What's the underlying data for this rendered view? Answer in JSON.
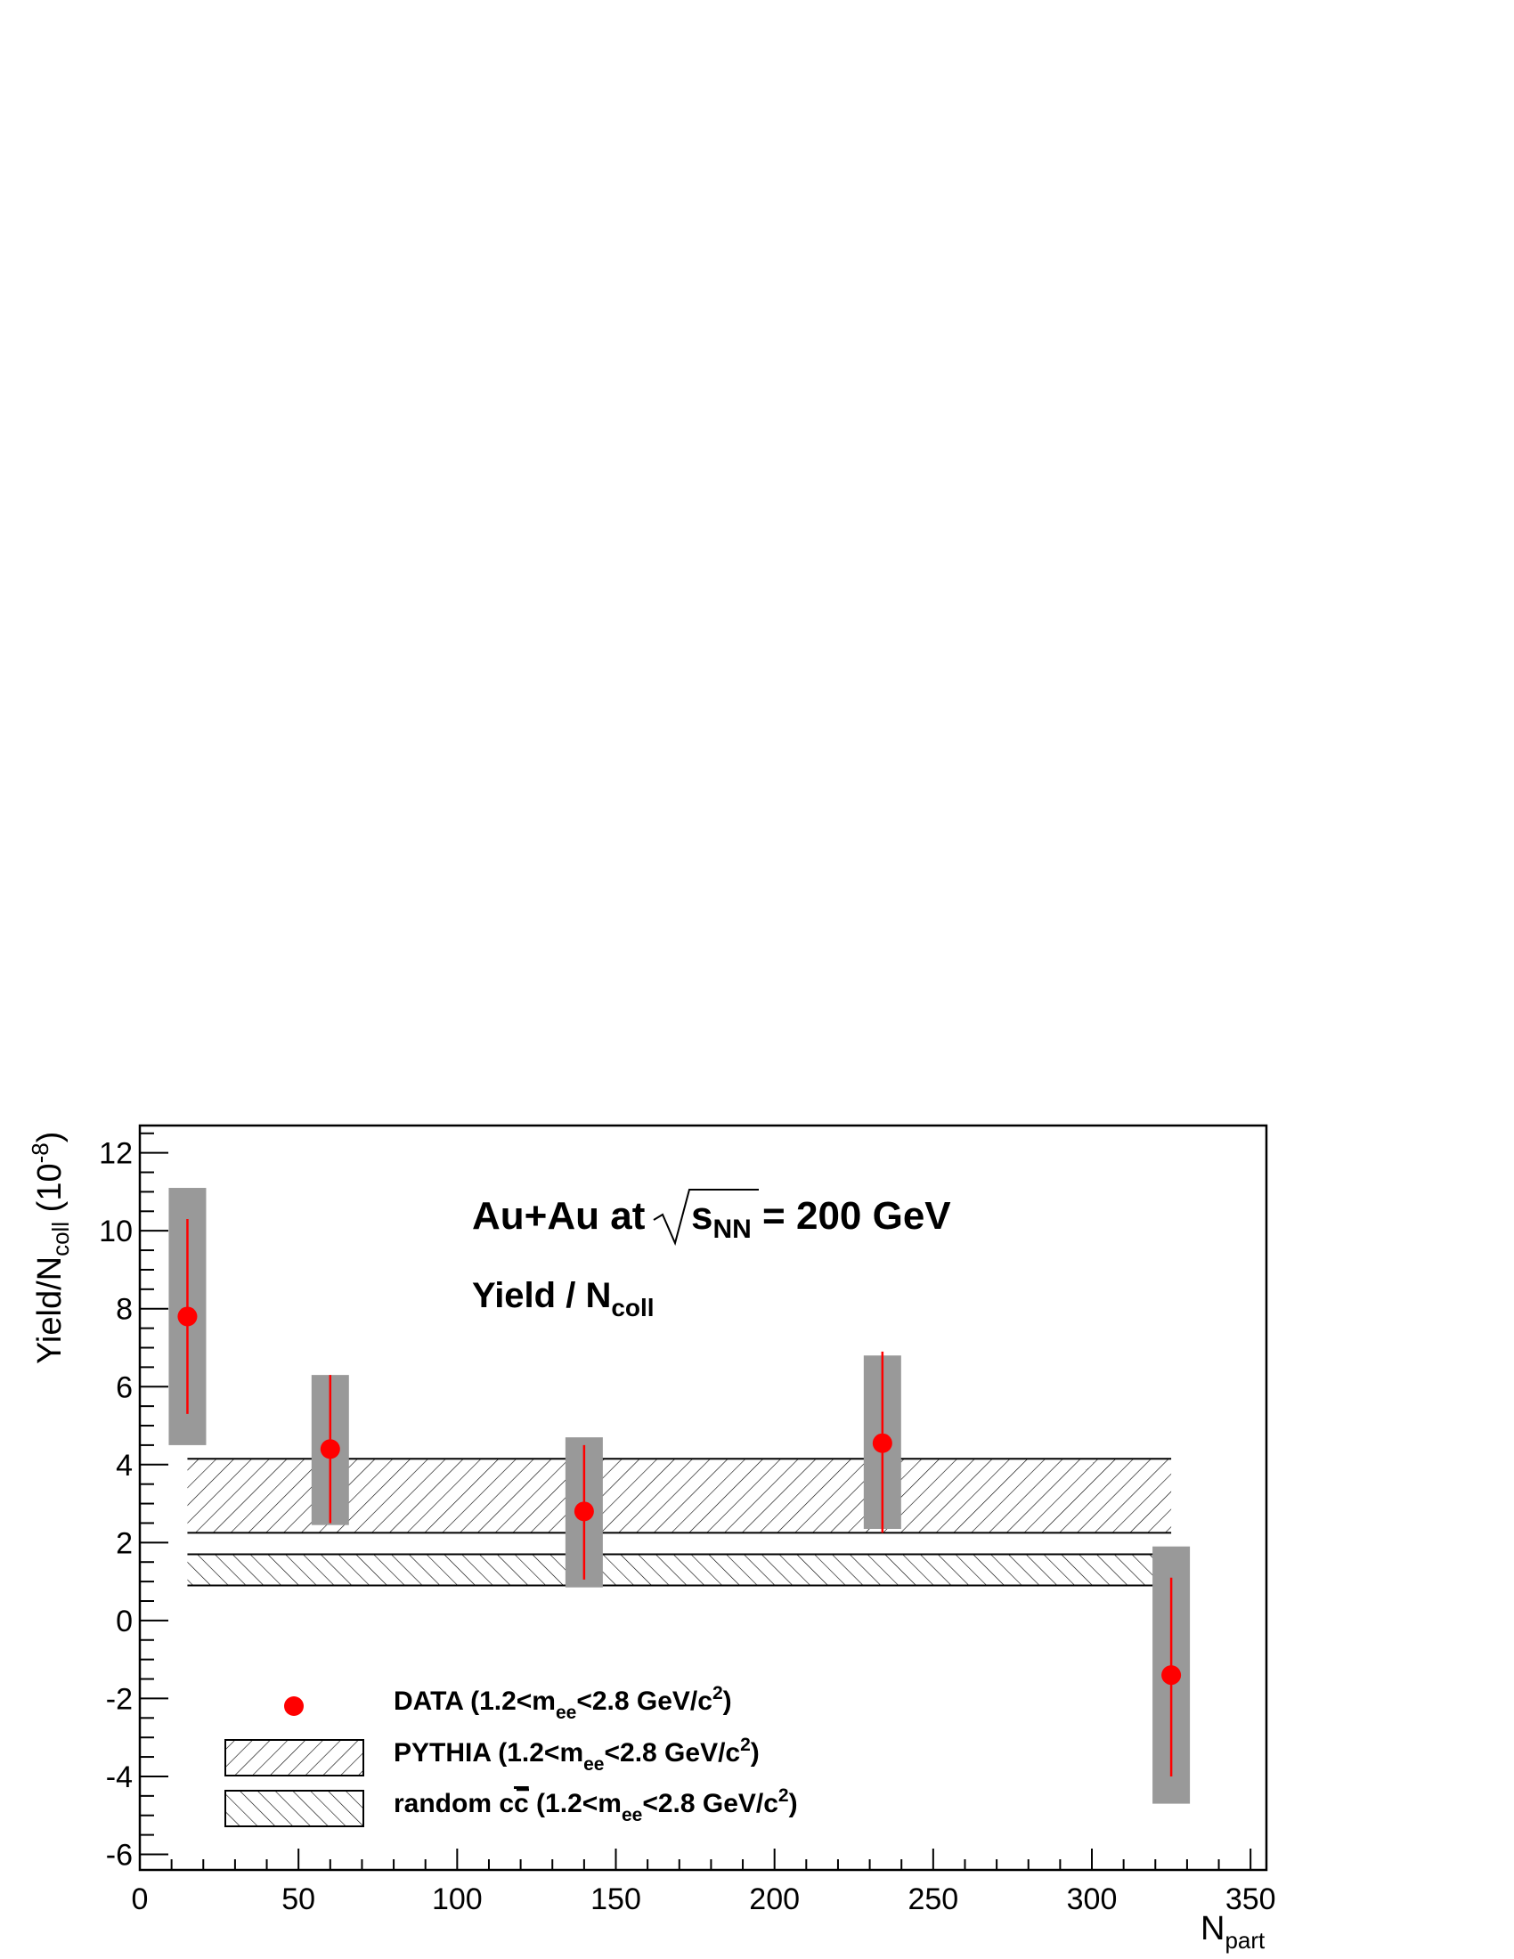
{
  "chart_data": {
    "type": "scatter",
    "x_axis": {
      "title": "N",
      "title_sub": "part",
      "range": [
        0,
        355
      ],
      "ticks": [
        0,
        50,
        100,
        150,
        200,
        250,
        300,
        350
      ],
      "tick_labels": [
        "0",
        "50",
        "100",
        "150",
        "200",
        "250",
        "300",
        "350"
      ]
    },
    "y_axis": {
      "title_main": "Yield/N",
      "title_sub": "coll",
      "title_unit": "(10",
      "title_exp": "-8",
      "title_close": ")",
      "range": [
        -6.4,
        12.7
      ],
      "ticks": [
        -6,
        -4,
        -2,
        0,
        2,
        4,
        6,
        8,
        10,
        12
      ],
      "tick_labels": [
        "-6",
        "-4",
        "-2",
        "0",
        "2",
        "4",
        "6",
        "8",
        "10",
        "12"
      ]
    },
    "annotations": {
      "line1_prefix": "Au+Au at",
      "line1_s": "s",
      "line1_s_sub": "NN",
      "line1_suffix": " = 200 GeV",
      "line2_main": "Yield / N",
      "line2_sub": "coll"
    },
    "series": [
      {
        "name": "DATA",
        "color": "#ff0000",
        "points": [
          {
            "x": 15,
            "y": 7.8,
            "err_low": 5.3,
            "err_high": 10.3,
            "sys_low": 4.5,
            "sys_high": 11.1
          },
          {
            "x": 60,
            "y": 4.4,
            "err_low": 2.5,
            "err_high": 6.3,
            "sys_low": 2.45,
            "sys_high": 6.3
          },
          {
            "x": 140,
            "y": 2.8,
            "err_low": 1.05,
            "err_high": 4.5,
            "sys_low": 0.85,
            "sys_high": 4.7
          },
          {
            "x": 234,
            "y": 4.55,
            "err_low": 2.25,
            "err_high": 6.9,
            "sys_low": 2.35,
            "sys_high": 6.8
          },
          {
            "x": 325,
            "y": -1.4,
            "err_low": -4.0,
            "err_high": 1.1,
            "sys_low": -4.7,
            "sys_high": 1.9
          }
        ],
        "sys_color": "#999999"
      }
    ],
    "bands": [
      {
        "name": "PYTHIA",
        "x_min": 15,
        "x_max": 325,
        "y_min": 2.25,
        "y_max": 4.15,
        "hatch": "forward"
      },
      {
        "name": "random cc",
        "x_min": 15,
        "x_max": 325,
        "y_min": 0.9,
        "y_max": 1.7,
        "hatch": "backward"
      }
    ],
    "legend": {
      "position": "bottom-left",
      "entries": [
        {
          "main": "DATA (1.2<m",
          "sub": "ee",
          "rest": "<2.8 GeV/c",
          "sup": "2",
          "end": ")"
        },
        {
          "main": "PYTHIA (1.2<m",
          "sub": "ee",
          "rest": "<2.8 GeV/c",
          "sup": "2",
          "end": ")"
        },
        {
          "main_a": "random c",
          "overline": "c",
          "main_b": " (1.2<m",
          "sub": "ee",
          "rest": "<2.8 GeV/c",
          "sup": "2",
          "end": ")"
        }
      ]
    },
    "grid": false
  }
}
